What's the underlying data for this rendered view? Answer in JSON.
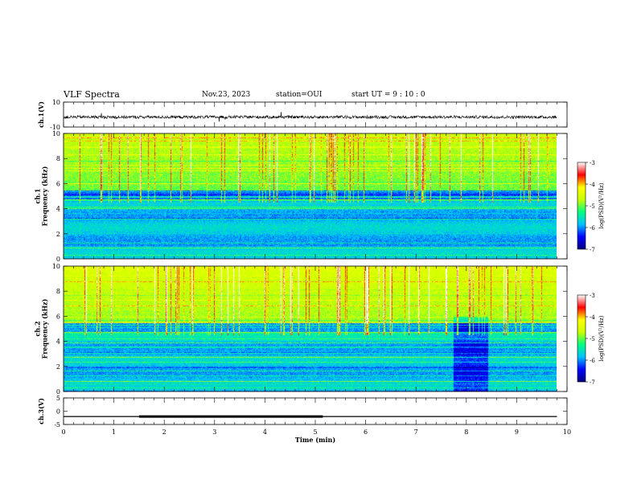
{
  "header": {
    "title": "VLF Spectra",
    "date": "Nov.23, 2023",
    "station": "station=OUI",
    "start": "start  UT =   9 : 10 : 0"
  },
  "chart_data": [
    {
      "type": "line",
      "name": "ch1-waveform",
      "ylabel": "ch.1(V)",
      "ylim": [
        -10,
        10
      ],
      "yticks": [
        "10",
        "-10"
      ],
      "xlim": [
        0,
        10
      ],
      "trace_range": [
        0,
        9.8
      ],
      "baseline": -2,
      "amplitude": 1.2
    },
    {
      "type": "heatmap",
      "name": "ch1-spectrogram",
      "ylabel": "ch.1\nFrequency (kHz)",
      "ylim": [
        0,
        10
      ],
      "yticks": [
        "0",
        "2",
        "4",
        "6",
        "8",
        "10"
      ],
      "xlim": [
        0,
        10
      ],
      "data_range": [
        0,
        9.8
      ],
      "colorbar": {
        "label": "log(PSD)(V²/Hz)",
        "ticks": [
          "-3",
          "-4",
          "-5",
          "-6",
          "-7"
        ],
        "range": [
          -7,
          -3
        ]
      }
    },
    {
      "type": "heatmap",
      "name": "ch2-spectrogram",
      "ylabel": "ch.2\nFrequency (kHz)",
      "ylim": [
        0,
        10
      ],
      "yticks": [
        "0",
        "2",
        "4",
        "6",
        "8",
        "10"
      ],
      "xlim": [
        0,
        10
      ],
      "data_range": [
        0,
        9.8
      ],
      "colorbar": {
        "label": "log(PSD)(V²/Hz)",
        "ticks": [
          "-3",
          "-4",
          "-5",
          "-6",
          "-7"
        ],
        "range": [
          -7,
          -3
        ]
      }
    },
    {
      "type": "line",
      "name": "ch3-signal",
      "ylabel": "ch.3(V)",
      "ylim": [
        -5,
        5
      ],
      "yticks": [
        "5",
        "0",
        "-5"
      ],
      "xlim": [
        0,
        10
      ],
      "xticks": [
        "0",
        "1",
        "2",
        "3",
        "4",
        "5",
        "6",
        "7",
        "8",
        "9",
        "10"
      ],
      "xlabel": "Time (min)",
      "baseline_segment": {
        "x": [
          0,
          9.8
        ],
        "y": -2
      },
      "thick_segment": {
        "x": [
          1.5,
          5.15
        ],
        "y": -2
      }
    }
  ],
  "colors": {
    "colormap": [
      "#000080",
      "#0000ff",
      "#00c0ff",
      "#00ff80",
      "#c8ff00",
      "#ffff00",
      "#ff0000",
      "#ffffff"
    ]
  }
}
